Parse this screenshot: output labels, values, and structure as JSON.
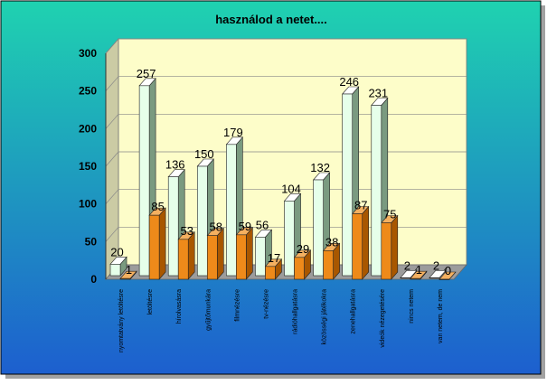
{
  "chart_data": {
    "type": "bar",
    "title": "használod a netet....",
    "xlabel": "",
    "ylabel": "",
    "ylim": [
      0,
      300
    ],
    "yticks": [
      0,
      50,
      100,
      150,
      200,
      250,
      300
    ],
    "grid": true,
    "legend": "none",
    "three_d": true,
    "categories": [
      "nyomtatvány letöltésre",
      "letöltésre",
      "hírolvasásra",
      "gyűjtőmunkára",
      "filmnézésre",
      "tv-nézésre",
      "rádióhallgatásra",
      "közösségi játékokra",
      "zenehallgatásra",
      "videók nézegetésére",
      "nincs netem",
      "van netem, de nem"
    ],
    "series": [
      {
        "values": [
          20,
          257,
          136,
          150,
          179,
          56,
          104,
          132,
          246,
          231,
          2,
          2
        ]
      },
      {
        "values": [
          1,
          85,
          53,
          58,
          59,
          17,
          29,
          38,
          87,
          75,
          1,
          0
        ]
      }
    ],
    "colors": {
      "frame_top": "#1fd2b0",
      "frame_bottom": "#1d5fcf",
      "plot_back": "#fdfdc9",
      "plot_wall_side": "#cbcba4",
      "floor": "#9c9c9c",
      "series1_front": "#e6ffea",
      "series1_side": "#7a9a80",
      "series2_front": "#ee8a1a",
      "series2_side": "#a85700"
    }
  }
}
